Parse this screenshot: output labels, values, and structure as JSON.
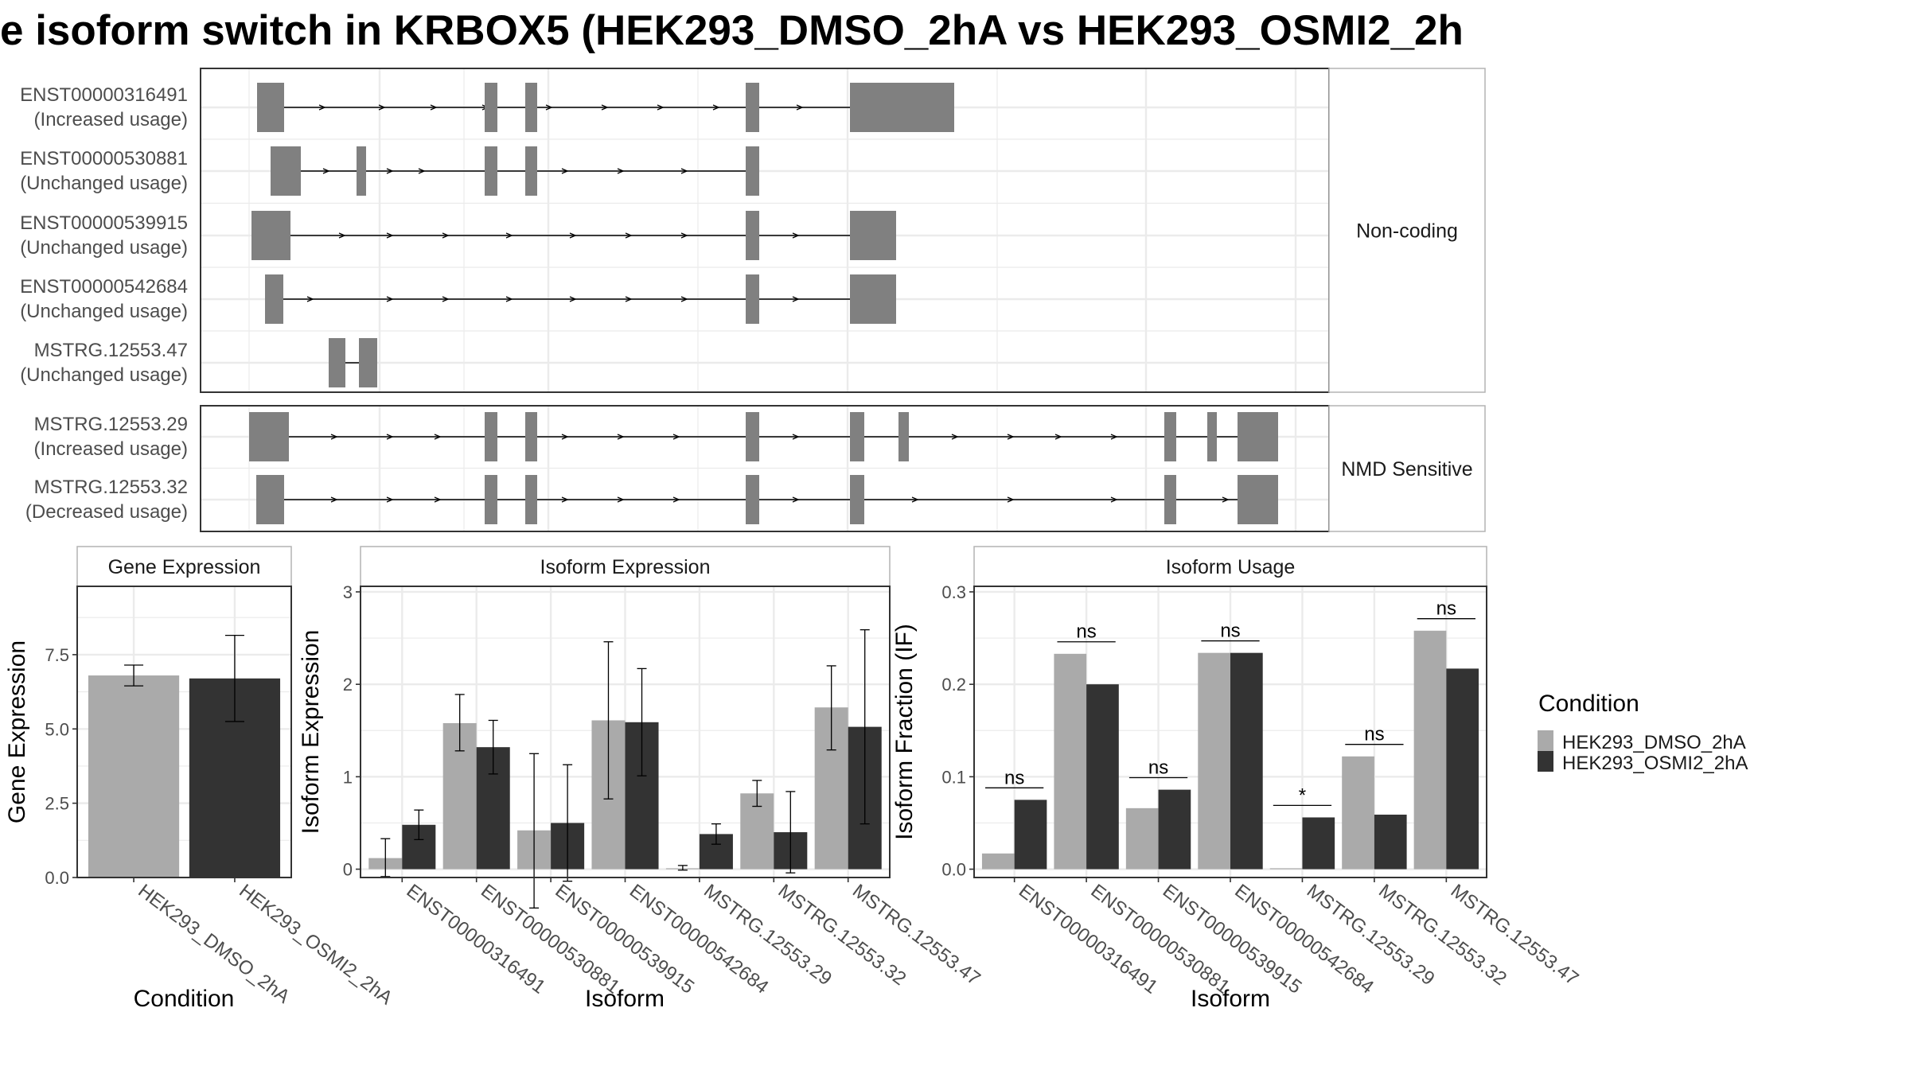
{
  "title": "e isoform switch in KRBOX5 (HEK293_DMSO_2hA vs HEK293_OSMI2_2h",
  "colors": {
    "exon": "#808080",
    "line": "#000000",
    "dmso": "#AAAAAA",
    "osmi": "#333333",
    "grid": "#EBEBEB",
    "strip": "#FFFFFF",
    "frame": "#333333"
  },
  "chart_data": [
    {
      "type": "gene-structure",
      "panels": [
        {
          "label": "Non-coding",
          "tracks": [
            {
              "name": "ENST00000316491",
              "usage": "(Increased usage)"
            },
            {
              "name": "ENST00000530881",
              "usage": "(Unchanged usage)"
            },
            {
              "name": "ENST00000539915",
              "usage": "(Unchanged usage)"
            },
            {
              "name": "ENST00000542684",
              "usage": "(Unchanged usage)"
            },
            {
              "name": "MSTRG.12553.47",
              "usage": "(Unchanged usage)"
            }
          ]
        },
        {
          "label": "NMD Sensitive",
          "tracks": [
            {
              "name": "MSTRG.12553.29",
              "usage": "(Increased usage)"
            },
            {
              "name": "MSTRG.12553.32",
              "usage": "(Decreased usage)"
            }
          ]
        }
      ]
    },
    {
      "type": "bar",
      "title": "Gene Expression",
      "xlabel": "Condition",
      "ylabel": "Gene Expression",
      "ylim": [
        0,
        9.8
      ],
      "yticks": [
        "0.0",
        "2.5",
        "5.0",
        "7.5"
      ],
      "categories": [
        "HEK293_DMSO_2hA",
        "HEK293_OSMI2_2hA"
      ],
      "values": [
        6.8,
        6.7
      ],
      "err_low": [
        6.45,
        5.25
      ],
      "err_high": [
        7.15,
        8.15
      ]
    },
    {
      "type": "bar",
      "title": "Isoform Expression",
      "xlabel": "Isoform",
      "ylabel": "Isoform Expression",
      "ylim": [
        -0.09,
        3.06
      ],
      "yticks": [
        "0",
        "1",
        "2",
        "3"
      ],
      "categories": [
        "ENST00000316491",
        "ENST00000530881",
        "ENST00000539915",
        "ENST00000542684",
        "MSTRG.12553.29",
        "MSTRG.12553.32",
        "MSTRG.12553.47"
      ],
      "series": [
        {
          "name": "HEK293_DMSO_2hA",
          "values": [
            0.12,
            1.58,
            0.42,
            1.61,
            0.01,
            0.82,
            1.75
          ],
          "err_low": [
            -0.08,
            1.28,
            -0.42,
            0.76,
            -0.01,
            0.68,
            1.29
          ],
          "err_high": [
            0.33,
            1.89,
            1.25,
            2.46,
            0.04,
            0.96,
            2.2
          ]
        },
        {
          "name": "HEK293_OSMI2_2hA",
          "values": [
            0.48,
            1.32,
            0.5,
            1.59,
            0.38,
            0.4,
            1.54
          ],
          "err_low": [
            0.32,
            1.03,
            -0.13,
            1.01,
            0.27,
            -0.04,
            0.49
          ],
          "err_high": [
            0.64,
            1.61,
            1.13,
            2.17,
            0.49,
            0.84,
            2.59
          ]
        }
      ]
    },
    {
      "type": "bar",
      "title": "Isoform Usage",
      "xlabel": "Isoform",
      "ylabel": "Isoform Fraction (IF)",
      "ylim": [
        -0.009,
        0.306
      ],
      "yticks": [
        "0.0",
        "0.1",
        "0.2",
        "0.3"
      ],
      "categories": [
        "ENST00000316491",
        "ENST00000530881",
        "ENST00000539915",
        "ENST00000542684",
        "MSTRG.12553.29",
        "MSTRG.12553.32",
        "MSTRG.12553.47"
      ],
      "series": [
        {
          "name": "HEK293_DMSO_2hA",
          "values": [
            0.017,
            0.233,
            0.066,
            0.234,
            0.001,
            0.122,
            0.258
          ]
        },
        {
          "name": "HEK293_OSMI2_2hA",
          "values": [
            0.075,
            0.2,
            0.086,
            0.234,
            0.056,
            0.059,
            0.217
          ]
        }
      ],
      "significance": [
        "ns",
        "ns",
        "ns",
        "ns",
        "*",
        "ns",
        "ns"
      ],
      "sig_heights": [
        0.088,
        0.246,
        0.099,
        0.247,
        0.069,
        0.135,
        0.271
      ]
    }
  ],
  "legend": {
    "title": "Condition",
    "items": [
      "HEK293_DMSO_2hA",
      "HEK293_OSMI2_2hA"
    ]
  }
}
